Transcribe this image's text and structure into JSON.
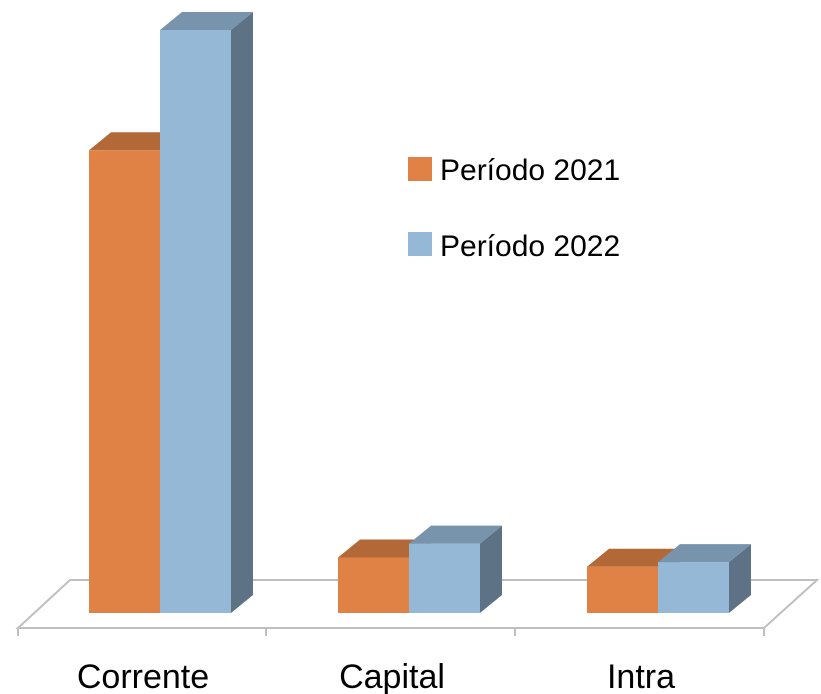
{
  "chart_data": {
    "type": "bar",
    "style": "3d-clustered-column",
    "categories": [
      "Corrente",
      "Capital",
      "Intra"
    ],
    "series": [
      {
        "name": "Período 2021",
        "color": "#E08246",
        "values": [
          100,
          12,
          10
        ]
      },
      {
        "name": "Período 2022",
        "color": "#96B8D7",
        "values": [
          126,
          15,
          11
        ]
      }
    ],
    "ylim": [
      0,
      130
    ],
    "grid": false,
    "axis_labels_visible": false,
    "legend": {
      "position": "right-inside"
    }
  }
}
